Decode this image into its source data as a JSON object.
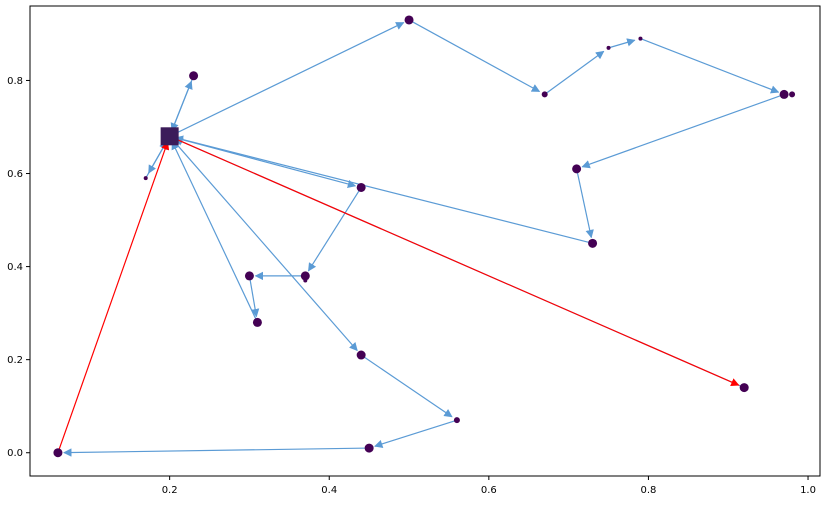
{
  "chart_data": {
    "type": "scatter",
    "title": "",
    "xlabel": "",
    "ylabel": "",
    "xlim": [
      0.025,
      1.015
    ],
    "ylim": [
      -0.05,
      0.96
    ],
    "xticks": [
      0.2,
      0.4,
      0.6,
      0.8,
      1.0
    ],
    "xtick_labels": [
      "0.2",
      "0.4",
      "0.6",
      "0.8",
      "1.0"
    ],
    "yticks": [
      0.0,
      0.2,
      0.4,
      0.6,
      0.8
    ],
    "ytick_labels": [
      "0.0",
      "0.2",
      "0.4",
      "0.6",
      "0.8"
    ],
    "grid": false,
    "depot": {
      "x": 0.2,
      "y": 0.68,
      "marker": "square"
    },
    "points": [
      {
        "x": 0.06,
        "y": 0.0,
        "size": "medium"
      },
      {
        "x": 0.17,
        "y": 0.59,
        "size": "tiny"
      },
      {
        "x": 0.23,
        "y": 0.81,
        "size": "medium"
      },
      {
        "x": 0.3,
        "y": 0.38,
        "size": "medium"
      },
      {
        "x": 0.31,
        "y": 0.28,
        "size": "medium"
      },
      {
        "x": 0.37,
        "y": 0.38,
        "size": "medium"
      },
      {
        "x": 0.37,
        "y": 0.37,
        "size": "tiny"
      },
      {
        "x": 0.44,
        "y": 0.57,
        "size": "medium"
      },
      {
        "x": 0.44,
        "y": 0.21,
        "size": "medium"
      },
      {
        "x": 0.45,
        "y": 0.01,
        "size": "medium"
      },
      {
        "x": 0.5,
        "y": 0.93,
        "size": "medium"
      },
      {
        "x": 0.56,
        "y": 0.07,
        "size": "small"
      },
      {
        "x": 0.67,
        "y": 0.77,
        "size": "small"
      },
      {
        "x": 0.71,
        "y": 0.61,
        "size": "medium"
      },
      {
        "x": 0.73,
        "y": 0.45,
        "size": "medium"
      },
      {
        "x": 0.75,
        "y": 0.87,
        "size": "tiny"
      },
      {
        "x": 0.79,
        "y": 0.89,
        "size": "tiny"
      },
      {
        "x": 0.92,
        "y": 0.14,
        "size": "medium"
      },
      {
        "x": 0.97,
        "y": 0.77,
        "size": "medium"
      },
      {
        "x": 0.98,
        "y": 0.77,
        "size": "small"
      }
    ],
    "routes": [
      {
        "color": "#5b9bd5",
        "path": [
          [
            0.2,
            0.68
          ],
          [
            0.23,
            0.81
          ],
          [
            0.2,
            0.68
          ]
        ]
      },
      {
        "color": "#5b9bd5",
        "path": [
          [
            0.2,
            0.68
          ],
          [
            0.17,
            0.59
          ],
          [
            0.2,
            0.68
          ]
        ]
      },
      {
        "color": "#5b9bd5",
        "path": [
          [
            0.2,
            0.68
          ],
          [
            0.5,
            0.93
          ],
          [
            0.67,
            0.77
          ],
          [
            0.75,
            0.87
          ],
          [
            0.79,
            0.89
          ],
          [
            0.97,
            0.77
          ],
          [
            0.71,
            0.61
          ],
          [
            0.73,
            0.45
          ],
          [
            0.2,
            0.68
          ]
        ]
      },
      {
        "color": "#5b9bd5",
        "path": [
          [
            0.2,
            0.68
          ],
          [
            0.44,
            0.57
          ],
          [
            0.37,
            0.38
          ],
          [
            0.3,
            0.38
          ],
          [
            0.31,
            0.28
          ],
          [
            0.2,
            0.68
          ]
        ]
      },
      {
        "color": "#5b9bd5",
        "path": [
          [
            0.2,
            0.68
          ],
          [
            0.44,
            0.21
          ],
          [
            0.56,
            0.07
          ],
          [
            0.45,
            0.01
          ],
          [
            0.06,
            0.0
          ]
        ]
      },
      {
        "color": "#ff0000",
        "path": [
          [
            0.06,
            0.0
          ],
          [
            0.2,
            0.68
          ]
        ]
      },
      {
        "color": "#5b9bd5",
        "path": [
          [
            0.92,
            0.14
          ],
          [
            0.2,
            0.68
          ]
        ]
      },
      {
        "color": "#ff0000",
        "path": [
          [
            0.2,
            0.68
          ],
          [
            0.92,
            0.14
          ]
        ]
      }
    ],
    "colors": {
      "marker": "#440154",
      "route": "#5b9bd5",
      "highlight": "#ff0000",
      "depot": "#3b1c5a"
    }
  }
}
